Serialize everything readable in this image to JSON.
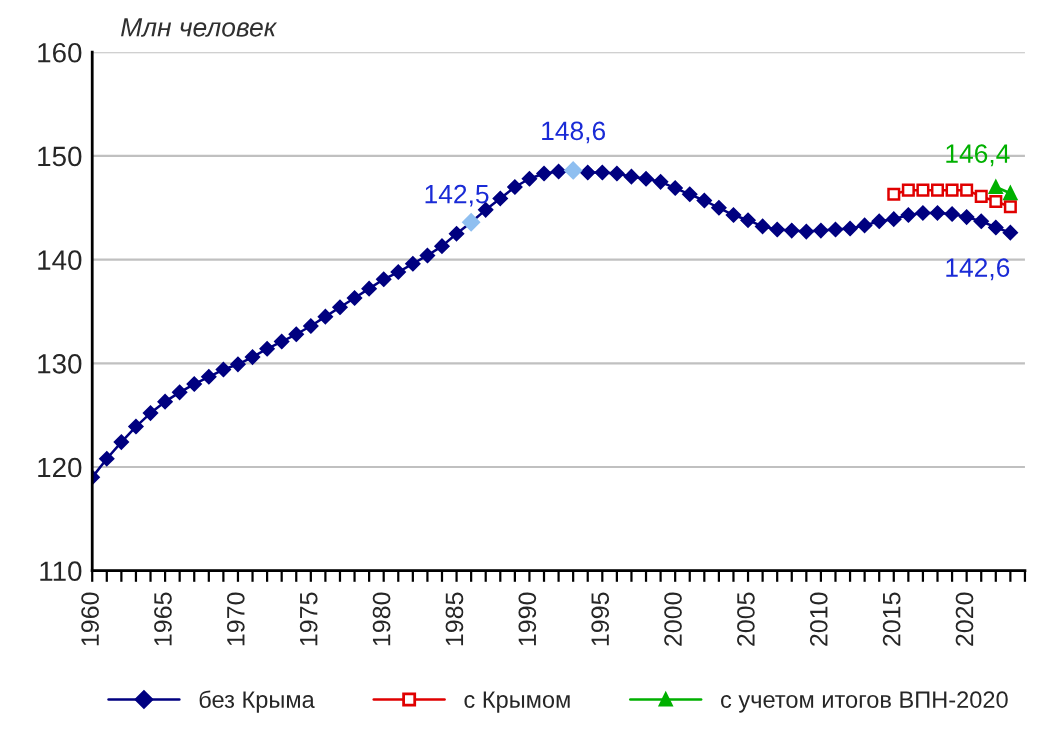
{
  "chart_data": {
    "type": "line",
    "ylabel": "Млн человек",
    "xlim": [
      1960,
      2024
    ],
    "ylim": [
      110,
      160
    ],
    "yticks": [
      110,
      120,
      130,
      140,
      150,
      160
    ],
    "xticks": [
      1960,
      {
        "value": 1961,
        "label": null
      },
      {
        "value": 1962,
        "label": null
      },
      {
        "value": 1963,
        "label": null
      },
      {
        "value": 1964,
        "label": null
      },
      1965,
      {
        "value": 1966,
        "label": null
      },
      {
        "value": 1967,
        "label": null
      },
      {
        "value": 1968,
        "label": null
      },
      {
        "value": 1969,
        "label": null
      },
      1970,
      {
        "value": 1971,
        "label": null
      },
      {
        "value": 1972,
        "label": null
      },
      {
        "value": 1973,
        "label": null
      },
      {
        "value": 1974,
        "label": null
      },
      1975,
      {
        "value": 1976,
        "label": null
      },
      {
        "value": 1977,
        "label": null
      },
      {
        "value": 1978,
        "label": null
      },
      {
        "value": 1979,
        "label": null
      },
      1980,
      {
        "value": 1981,
        "label": null
      },
      {
        "value": 1982,
        "label": null
      },
      {
        "value": 1983,
        "label": null
      },
      {
        "value": 1984,
        "label": null
      },
      1985,
      {
        "value": 1986,
        "label": null
      },
      {
        "value": 1987,
        "label": null
      },
      {
        "value": 1988,
        "label": null
      },
      {
        "value": 1989,
        "label": null
      },
      1990,
      {
        "value": 1991,
        "label": null
      },
      {
        "value": 1992,
        "label": null
      },
      {
        "value": 1993,
        "label": null
      },
      {
        "value": 1994,
        "label": null
      },
      1995,
      {
        "value": 1996,
        "label": null
      },
      {
        "value": 1997,
        "label": null
      },
      {
        "value": 1998,
        "label": null
      },
      {
        "value": 1999,
        "label": null
      },
      2000,
      {
        "value": 2001,
        "label": null
      },
      {
        "value": 2002,
        "label": null
      },
      {
        "value": 2003,
        "label": null
      },
      {
        "value": 2004,
        "label": null
      },
      2005,
      {
        "value": 2006,
        "label": null
      },
      {
        "value": 2007,
        "label": null
      },
      {
        "value": 2008,
        "label": null
      },
      {
        "value": 2009,
        "label": null
      },
      2010,
      {
        "value": 2011,
        "label": null
      },
      {
        "value": 2012,
        "label": null
      },
      {
        "value": 2013,
        "label": null
      },
      {
        "value": 2014,
        "label": null
      },
      2015,
      {
        "value": 2016,
        "label": null
      },
      {
        "value": 2017,
        "label": null
      },
      {
        "value": 2018,
        "label": null
      },
      {
        "value": 2019,
        "label": null
      },
      2020,
      {
        "value": 2021,
        "label": null
      },
      {
        "value": 2022,
        "label": null
      },
      {
        "value": 2023,
        "label": null
      },
      {
        "value": 2024,
        "label": null
      }
    ],
    "grid": "y",
    "legend": "bottom",
    "series": [
      {
        "name": "без Крыма",
        "color": "#000080",
        "marker": "diamond",
        "x": [
          1960,
          1961,
          1962,
          1963,
          1964,
          1965,
          1966,
          1967,
          1968,
          1969,
          1970,
          1971,
          1972,
          1973,
          1974,
          1975,
          1976,
          1977,
          1978,
          1979,
          1980,
          1981,
          1982,
          1983,
          1984,
          1985,
          1986,
          1987,
          1988,
          1989,
          1990,
          1991,
          1992,
          1993,
          1994,
          1995,
          1996,
          1997,
          1998,
          1999,
          2000,
          2001,
          2002,
          2003,
          2004,
          2005,
          2006,
          2007,
          2008,
          2009,
          2010,
          2011,
          2012,
          2013,
          2014,
          2015,
          2016,
          2017,
          2018,
          2019,
          2020,
          2021,
          2022,
          2023
        ],
        "values": [
          119.0,
          120.8,
          122.4,
          123.9,
          125.2,
          126.3,
          127.2,
          128.0,
          128.7,
          129.4,
          129.9,
          130.6,
          131.4,
          132.1,
          132.8,
          133.6,
          134.5,
          135.4,
          136.3,
          137.2,
          138.1,
          138.8,
          139.6,
          140.4,
          141.3,
          142.5,
          143.6,
          144.8,
          145.9,
          147.0,
          147.8,
          148.3,
          148.5,
          148.6,
          148.4,
          148.4,
          148.3,
          148.0,
          147.8,
          147.5,
          146.9,
          146.3,
          145.7,
          145.0,
          144.3,
          143.8,
          143.2,
          142.9,
          142.8,
          142.7,
          142.8,
          142.9,
          143.0,
          143.3,
          143.7,
          143.9,
          144.3,
          144.5,
          144.5,
          144.4,
          144.1,
          143.7,
          143.1,
          142.6
        ],
        "colors": [
          "#000080",
          "#000080",
          "#000080",
          "#000080",
          "#000080",
          "#000080",
          "#000080",
          "#000080",
          "#000080",
          "#000080",
          "#000080",
          "#000080",
          "#000080",
          "#000080",
          "#000080",
          "#000080",
          "#000080",
          "#000080",
          "#000080",
          "#000080",
          "#000080",
          "#000080",
          "#000080",
          "#000080",
          "#000080",
          "#000080",
          "#8fbff0",
          "#000080",
          "#000080",
          "#000080",
          "#000080",
          "#000080",
          "#000080",
          "#8fbff0",
          "#000080",
          "#000080",
          "#000080",
          "#000080",
          "#000080",
          "#000080",
          "#000080",
          "#000080",
          "#000080",
          "#000080",
          "#000080",
          "#000080",
          "#000080",
          "#000080",
          "#000080",
          "#000080",
          "#000080",
          "#000080",
          "#000080",
          "#000080",
          "#000080",
          "#000080",
          "#000080",
          "#000080",
          "#000080",
          "#000080",
          "#000080",
          "#000080",
          "#000080",
          "#000080"
        ]
      },
      {
        "name": "с Крымом",
        "color": "#e00000",
        "marker": "square",
        "x": [
          2015,
          2016,
          2017,
          2018,
          2019,
          2020,
          2021,
          2022,
          2023
        ],
        "values": [
          146.3,
          146.7,
          146.7,
          146.7,
          146.7,
          146.7,
          146.1,
          145.6,
          145.1
        ]
      },
      {
        "name": "с учетом итогов ВПН-2020",
        "color": "#00b000",
        "marker": "triangle",
        "x": [
          2022,
          2023
        ],
        "values": [
          147.0,
          146.4
        ]
      }
    ],
    "annotations": [
      {
        "text": "148,6",
        "x": 1993,
        "y": 148.6
      },
      {
        "text": "142,5",
        "x": 1985,
        "y": 142.5
      },
      {
        "text": "146,4",
        "x": 2023,
        "y": 146.4
      },
      {
        "text": "142,6",
        "x": 2023,
        "y": 142.6
      }
    ]
  }
}
